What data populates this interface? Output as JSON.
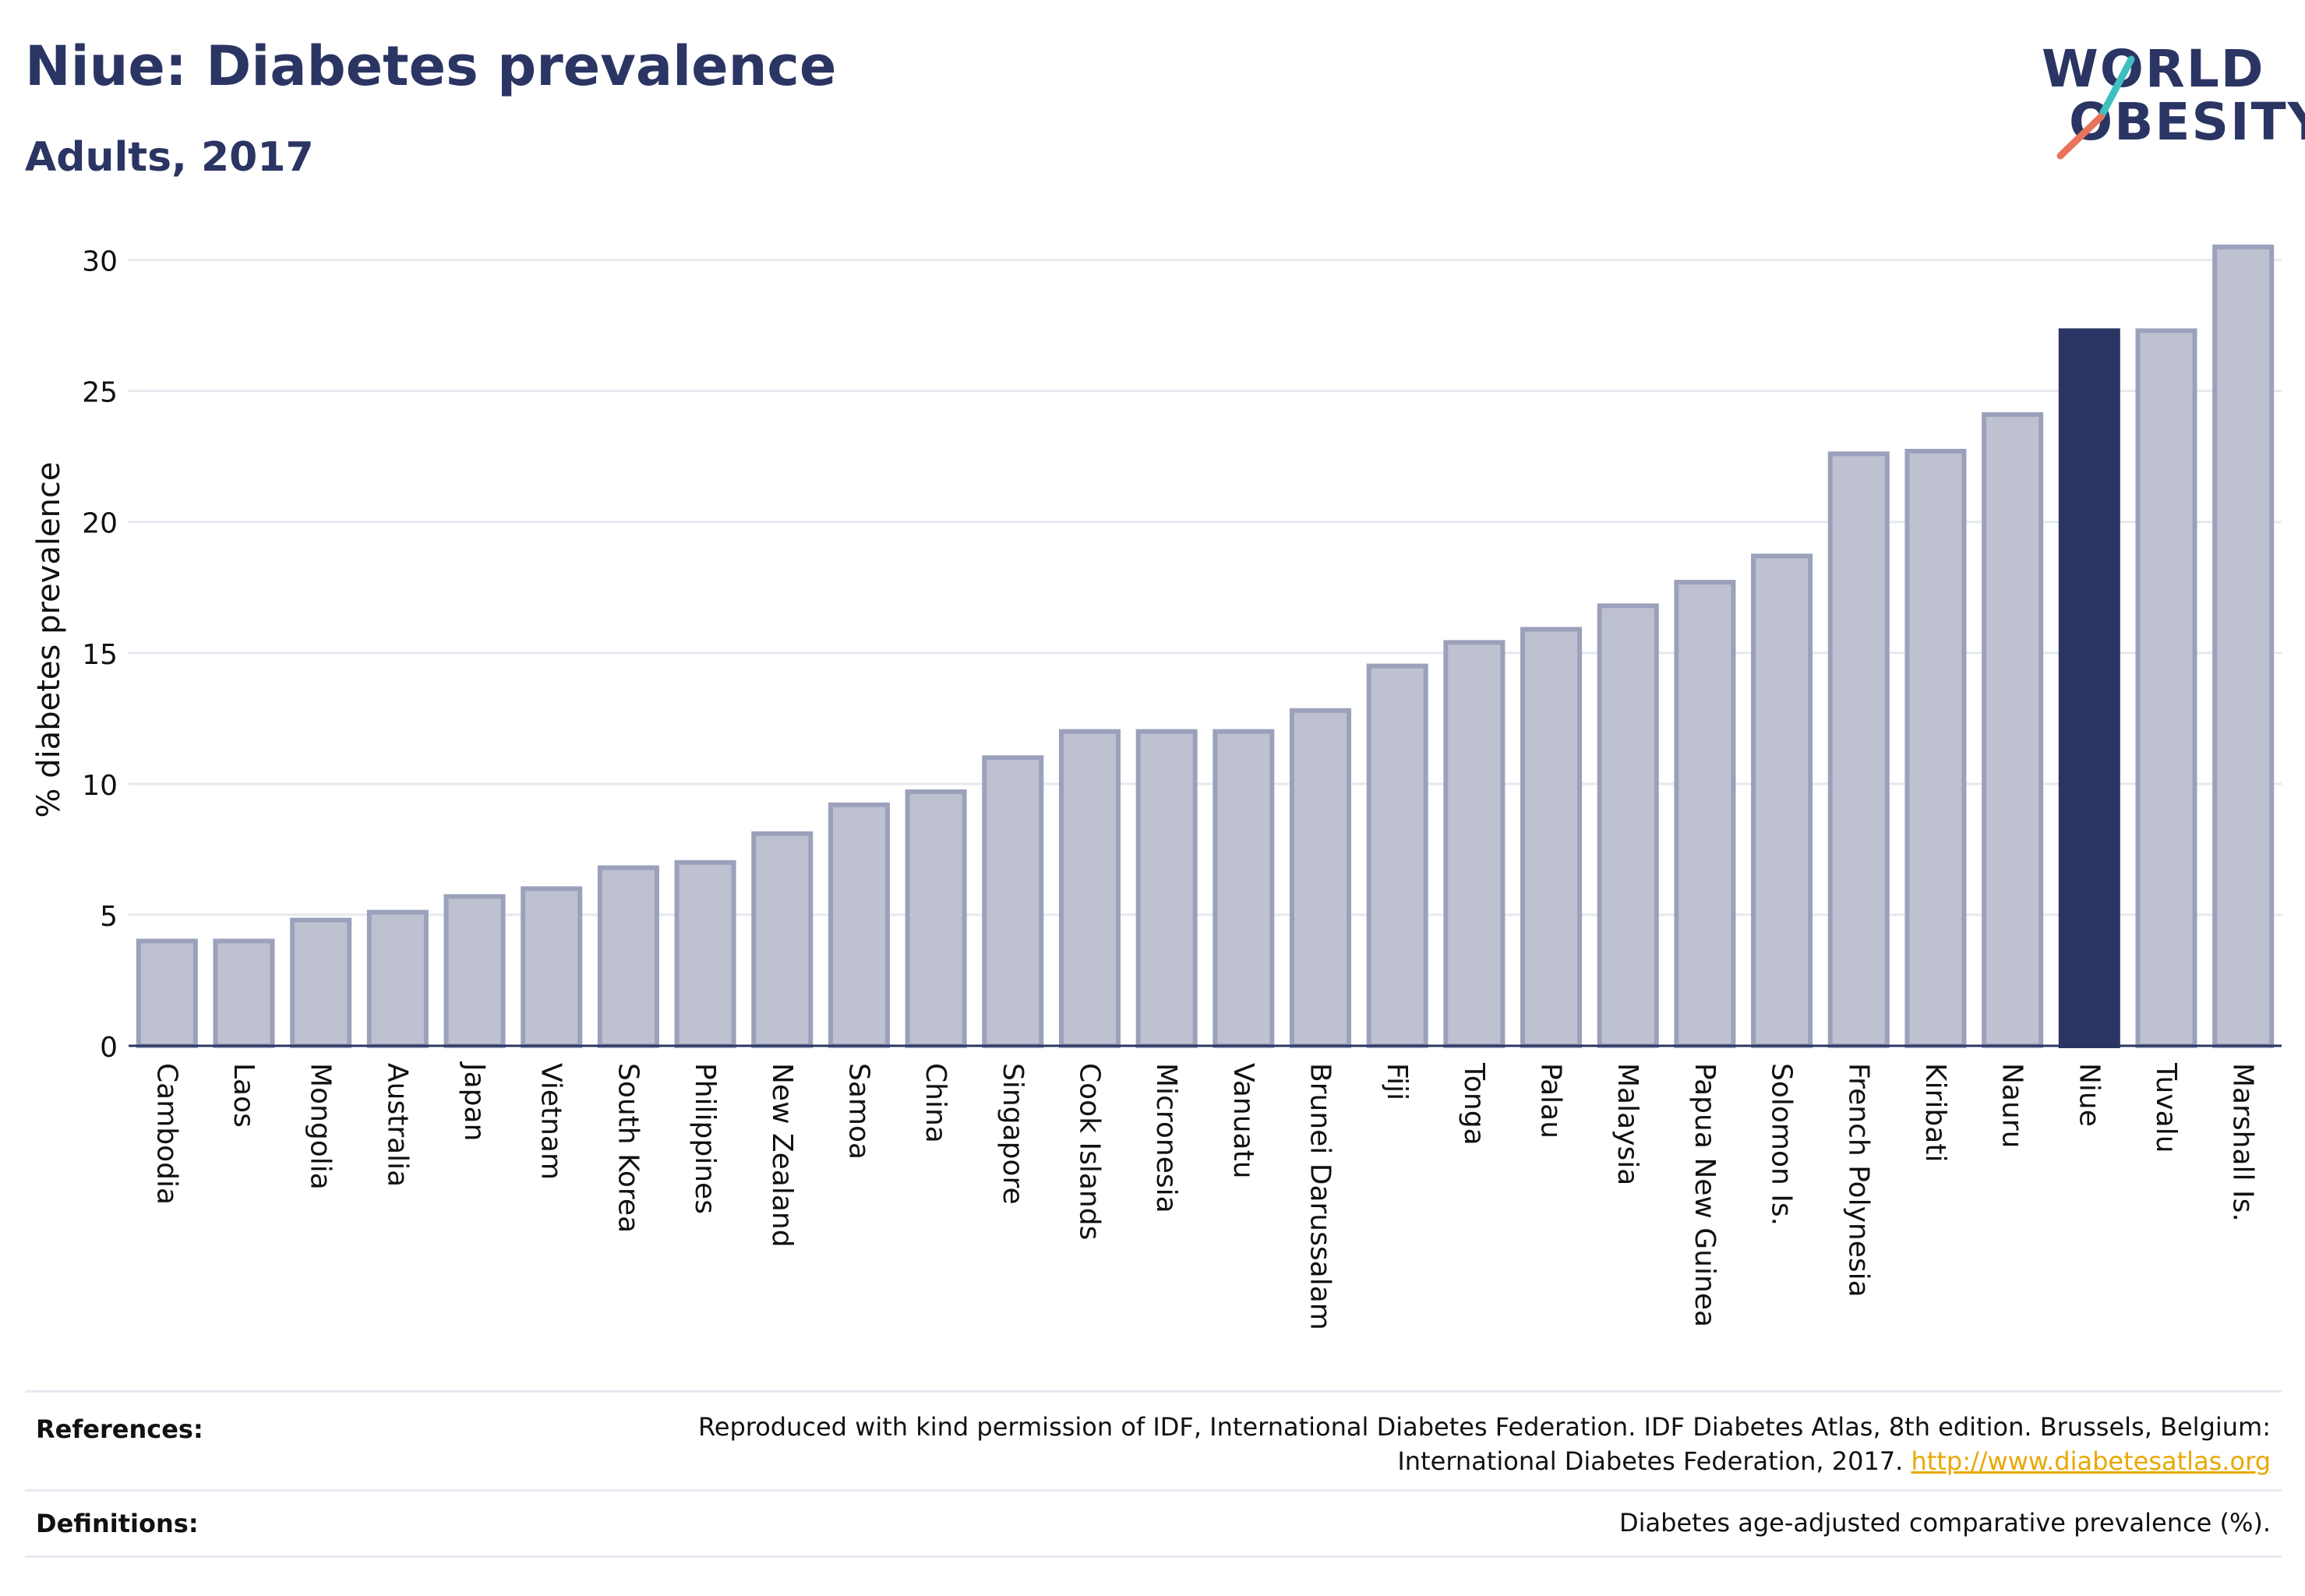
{
  "header": {
    "title": "Niue: Diabetes prevalence",
    "subtitle": "Adults, 2017"
  },
  "logo": {
    "line1": "WORLD",
    "line2": "OBESITY",
    "slash_colors": [
      "#3fbfbf",
      "#e8735a"
    ]
  },
  "chart_data": {
    "type": "bar",
    "ylabel": "% diabetes prevalence",
    "ylim": [
      0,
      31
    ],
    "yticks": [
      0,
      5,
      10,
      15,
      20,
      25,
      30
    ],
    "categories": [
      "Cambodia",
      "Laos",
      "Mongolia",
      "Australia",
      "Japan",
      "Vietnam",
      "South Korea",
      "Philippines",
      "New Zealand",
      "Samoa",
      "China",
      "Singapore",
      "Cook Islands",
      "Micronesia",
      "Vanuatu",
      "Brunei Darussalam",
      "Fiji",
      "Tonga",
      "Palau",
      "Malaysia",
      "Papua New Guinea",
      "Solomon Is.",
      "French Polynesia",
      "Kiribati",
      "Nauru",
      "Niue",
      "Tuvalu",
      "Marshall Is."
    ],
    "values": [
      4.0,
      4.0,
      4.8,
      5.1,
      5.7,
      6.0,
      6.8,
      7.0,
      8.1,
      9.2,
      9.7,
      11.0,
      12.0,
      12.0,
      12.0,
      12.8,
      14.5,
      15.4,
      15.9,
      16.8,
      17.7,
      18.7,
      22.6,
      22.7,
      24.1,
      27.3,
      27.3,
      30.5
    ],
    "highlight": "Niue",
    "colors": {
      "default": "#bec2d0",
      "default_border": "#9ba1bb",
      "highlight": "#2b3563"
    },
    "grid": true
  },
  "references": {
    "label": "References:",
    "line1": "Reproduced with kind permission of IDF, International Diabetes Federation. IDF Diabetes Atlas, 8th edition. Brussels, Belgium:",
    "line2": "International Diabetes Federation, 2017.",
    "link": "http://www.diabetesatlas.org"
  },
  "definitions": {
    "label": "Definitions:",
    "text": "Diabetes age-adjusted comparative prevalence (%)."
  }
}
